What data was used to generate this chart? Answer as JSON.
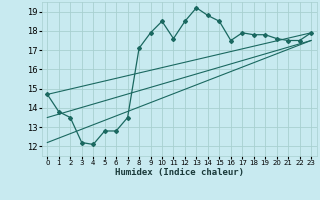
{
  "xlabel": "Humidex (Indice chaleur)",
  "bg_color": "#c8eaf0",
  "grid_color": "#a8d0d0",
  "line_color": "#1a6860",
  "xlim": [
    -0.5,
    23.5
  ],
  "ylim": [
    11.5,
    19.5
  ],
  "xticks": [
    0,
    1,
    2,
    3,
    4,
    5,
    6,
    7,
    8,
    9,
    10,
    11,
    12,
    13,
    14,
    15,
    16,
    17,
    18,
    19,
    20,
    21,
    22,
    23
  ],
  "yticks": [
    12,
    13,
    14,
    15,
    16,
    17,
    18,
    19
  ],
  "series1_x": [
    0,
    1,
    2,
    3,
    4,
    5,
    6,
    7,
    8,
    9,
    10,
    11,
    12,
    13,
    14,
    15,
    16,
    17,
    18,
    19,
    20,
    21,
    22,
    23
  ],
  "series1_y": [
    14.7,
    13.8,
    13.5,
    12.2,
    12.1,
    12.8,
    12.8,
    13.5,
    17.1,
    17.9,
    18.5,
    17.6,
    18.5,
    19.2,
    18.8,
    18.5,
    17.5,
    17.9,
    17.8,
    17.8,
    17.6,
    17.5,
    17.5,
    17.9
  ],
  "line2_x": [
    0,
    23
  ],
  "line2_y": [
    14.7,
    17.9
  ],
  "line3_x": [
    0,
    23
  ],
  "line3_y": [
    13.5,
    17.5
  ],
  "line4_x": [
    0,
    23
  ],
  "line4_y": [
    12.2,
    17.5
  ]
}
